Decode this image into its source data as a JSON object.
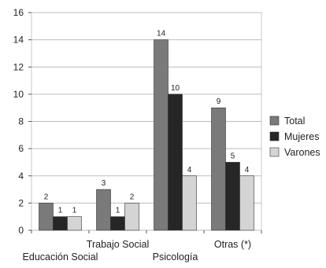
{
  "chart_data": {
    "type": "bar",
    "categories": [
      "Educación Social",
      "Trabajo Social",
      "Psicología",
      "Otras (*)"
    ],
    "series": [
      {
        "name": "Total",
        "values": [
          2,
          3,
          14,
          9
        ],
        "color": "#7a7a7a"
      },
      {
        "name": "Mujeres",
        "values": [
          1,
          1,
          10,
          5
        ],
        "color": "#262626"
      },
      {
        "name": "Varones",
        "values": [
          1,
          2,
          4,
          4
        ],
        "color": "#d4d4d4"
      }
    ],
    "title": "",
    "xlabel": "",
    "ylabel": "",
    "ylim": [
      0,
      16
    ],
    "yticks": [
      0,
      2,
      4,
      6,
      8,
      10,
      12,
      14,
      16
    ],
    "grid": true,
    "legend_position": "right",
    "data_labels": true
  }
}
